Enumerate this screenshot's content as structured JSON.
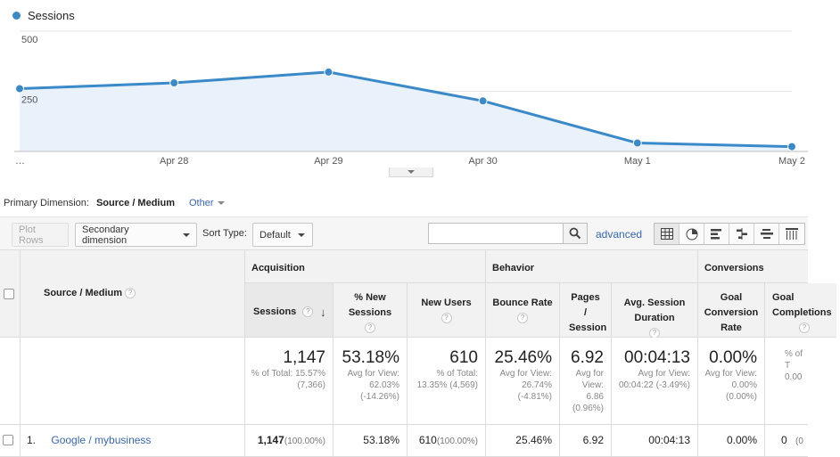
{
  "legend": {
    "label": "Sessions",
    "color": "#3a89c9"
  },
  "chart_data": {
    "type": "line",
    "series": [
      {
        "name": "Sessions",
        "values": [
          261,
          285,
          330,
          210,
          35,
          20
        ]
      }
    ],
    "x_labels": [
      "…",
      "Apr 28",
      "Apr 29",
      "Apr 30",
      "May 1",
      "May 2"
    ],
    "y_ticks": [
      250,
      500
    ],
    "ylim": [
      0,
      500
    ],
    "fill": "area",
    "line_color": "#3a89c9",
    "area_color": "#e9f1fa"
  },
  "primary_dimension": {
    "label": "Primary Dimension:",
    "value": "Source / Medium",
    "other": "Other"
  },
  "toolbar": {
    "plot_rows": "Plot Rows",
    "secondary_dimension": "Secondary dimension",
    "sort_type_label": "Sort Type:",
    "sort_type_value": "Default",
    "search_placeholder": "",
    "advanced": "advanced"
  },
  "table": {
    "groups": {
      "acquisition": "Acquisition",
      "behavior": "Behavior",
      "conversions": "Conversions"
    },
    "headers": {
      "source_medium": "Source / Medium",
      "sessions": "Sessions",
      "pct_new_sessions": "% New Sessions",
      "new_users": "New Users",
      "bounce_rate": "Bounce Rate",
      "pages_session": "Pages / Session",
      "avg_session_duration": "Avg. Session Duration",
      "goal_conversion_rate": "Goal Conversion Rate",
      "goal_completions": "Goal Completions"
    },
    "totals": {
      "sessions": {
        "value": "1,147",
        "sub": "% of Total: 15.57% (7,366)"
      },
      "pct_new_sessions": {
        "value": "53.18%",
        "sub": "Avg for View: 62.03% (-14.26%)"
      },
      "new_users": {
        "value": "610",
        "sub": "% of Total: 13.35% (4,569)"
      },
      "bounce_rate": {
        "value": "25.46%",
        "sub": "Avg for View: 26.74% (-4.81%)"
      },
      "pages_session": {
        "value": "6.92",
        "sub": "Avg for View: 6.86 (0.96%)"
      },
      "avg_session_duration": {
        "value": "00:04:13",
        "sub": "Avg for View: 00:04:22 (-3.49%)"
      },
      "goal_conversion_rate": {
        "value": "0.00%",
        "sub": "Avg for View: 0.00% (0.00%)"
      },
      "goal_completions": {
        "value": "",
        "sub": "% of T 0.00"
      }
    },
    "rows": [
      {
        "index": "1.",
        "source_medium": "Google / mybusiness",
        "sessions": "1,147",
        "sessions_pct": "(100.00%)",
        "pct_new_sessions": "53.18%",
        "new_users": "610",
        "new_users_pct": "(100.00%)",
        "bounce_rate": "25.46%",
        "pages_session": "6.92",
        "avg_session_duration": "00:04:13",
        "goal_conversion_rate": "0.00%",
        "goal_completions": "0",
        "goal_completions_pct": "(0"
      }
    ]
  }
}
